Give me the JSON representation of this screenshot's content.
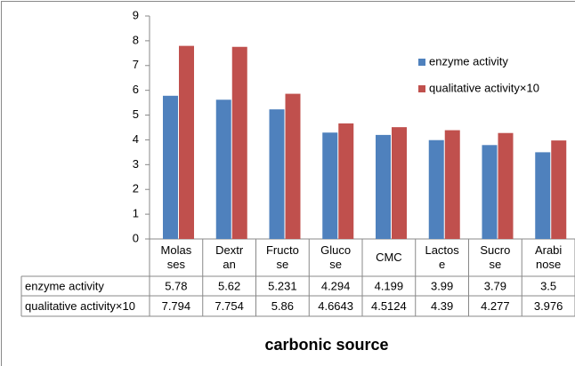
{
  "chart_data": {
    "type": "bar",
    "categories": [
      "Molas\nses",
      "Dextr\nan",
      "Fructo\nse",
      "Gluco\nse",
      "CMC",
      "Lactos\ne",
      "Sucro\nse",
      "Arabi\nnose"
    ],
    "series": [
      {
        "name": "enzyme activity",
        "color": "#4f81bd",
        "values": [
          5.78,
          5.62,
          5.231,
          4.294,
          4.199,
          3.99,
          3.79,
          3.5
        ]
      },
      {
        "name": "qualitative activity×10",
        "color": "#c0504d",
        "values": [
          7.794,
          7.754,
          5.86,
          4.6643,
          4.5124,
          4.39,
          4.277,
          3.976
        ]
      }
    ],
    "ylim": [
      0,
      9
    ],
    "yticks": [
      0,
      1,
      2,
      3,
      4,
      5,
      6,
      7,
      8,
      9
    ],
    "x_label": "carbonic source",
    "legend": "right",
    "grid": false,
    "data_table": true
  }
}
